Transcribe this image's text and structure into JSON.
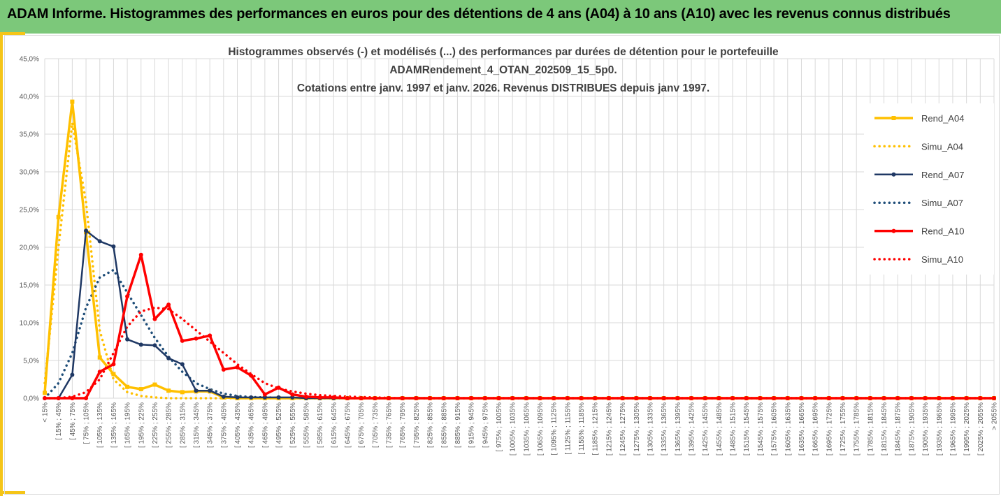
{
  "header": {
    "title": "ADAM Informe. Histogrammes des performances en euros pour des détentions de 4 ans (A04) à 10 ans (A10) avec les revenus connus distribués"
  },
  "colors": {
    "header_bg": "#7cc87a",
    "accent": "#f5c518",
    "A04": "#ffc000",
    "A07": "#1f3864",
    "A10": "#ff0000",
    "grid": "#d9d9d9"
  },
  "chart_data": {
    "type": "line",
    "title_lines": [
      "Histogrammes observés (-) et modélisés (...) des performances par durées de détention pour le portefeuille",
      "ADAMRendement_4_OTAN_202509_15_5p0.",
      "Cotations entre janv. 1997 et janv. 2026. Revenus DISTRIBUES depuis janv 1997."
    ],
    "ylim": [
      0,
      45
    ],
    "yticks": [
      "0,0%",
      "5,0%",
      "10,0%",
      "15,0%",
      "20,0%",
      "25,0%",
      "30,0%",
      "35,0%",
      "40,0%",
      "45,0%"
    ],
    "grid": true,
    "legend_position": "right",
    "categories": [
      "< 15%",
      "[ 15% ; 45%",
      "[ 45% ; 75%",
      "[ 75% ; 105%",
      "[ 105% ; 135%",
      "[ 135% ; 165%",
      "[ 165% ; 195%",
      "[ 195% ; 225%",
      "[ 225% ; 255%",
      "[ 255% ; 285%",
      "[ 285% ; 315%",
      "[ 315% ; 345%",
      "[ 345% ; 375%",
      "[ 375% ; 405%",
      "[ 405% ; 435%",
      "[ 435% ; 465%",
      "[ 465% ; 495%",
      "[ 495% ; 525%",
      "[ 525% ; 555%",
      "[ 555% ; 585%",
      "[ 585% ; 615%",
      "[ 615% ; 645%",
      "[ 645% ; 675%",
      "[ 675% ; 705%",
      "[ 705% ; 735%",
      "[ 735% ; 765%",
      "[ 765% ; 795%",
      "[ 795% ; 825%",
      "[ 825% ; 855%",
      "[ 855% ; 885%",
      "[ 885% ; 915%",
      "[ 915% ; 945%",
      "[ 945% ; 975%",
      "[ 975% ; 1005%",
      "[ 1005% ; 1035%",
      "[ 1035% ; 1065%",
      "[ 1065% ; 1095%",
      "[ 1095% ; 1125%",
      "[ 1125% ; 1155%",
      "[ 1155% ; 1185%",
      "[ 1185% ; 1215%",
      "[ 1215% ; 1245%",
      "[ 1245% ; 1275%",
      "[ 1275% ; 1305%",
      "[ 1305% ; 1335%",
      "[ 1335% ; 1365%",
      "[ 1365% ; 1395%",
      "[ 1395% ; 1425%",
      "[ 1425% ; 1455%",
      "[ 1455% ; 1485%",
      "[ 1485% ; 1515%",
      "[ 1515% ; 1545%",
      "[ 1545% ; 1575%",
      "[ 1575% ; 1605%",
      "[ 1605% ; 1635%",
      "[ 1635% ; 1665%",
      "[ 1665% ; 1695%",
      "[ 1695% ; 1725%",
      "[ 1725% ; 1755%",
      "[ 1755% ; 1785%",
      "[ 1785% ; 1815%",
      "[ 1815% ; 1845%",
      "[ 1845% ; 1875%",
      "[ 1875% ; 1905%",
      "[ 1905% ; 1935%",
      "[ 1935% ; 1965%",
      "[ 1965% ; 1995%",
      "[ 1995% ; 2025%",
      "[ 2025% ; 2055%",
      "> 2055%"
    ],
    "series": [
      {
        "name": "Rend_A04",
        "style": "solid",
        "color": "#ffc000",
        "values": [
          0.7,
          24.0,
          39.3,
          22.0,
          5.4,
          3.2,
          1.5,
          1.2,
          1.8,
          1.0,
          0.8,
          0.9,
          0.9,
          0.1,
          0,
          0,
          0,
          0,
          0,
          0,
          0,
          0,
          0,
          0,
          0,
          0,
          0,
          0,
          0,
          0,
          0,
          0,
          0,
          0,
          0,
          0,
          0,
          0,
          0,
          0,
          0,
          0,
          0,
          0,
          0,
          0,
          0,
          0,
          0,
          0,
          0,
          0,
          0,
          0,
          0,
          0,
          0,
          0,
          0,
          0,
          0,
          0,
          0,
          0,
          0,
          0,
          0,
          0,
          0,
          0
        ]
      },
      {
        "name": "Simu_A04",
        "style": "dotted",
        "color": "#ffc000",
        "values": [
          2.0,
          20.0,
          36.5,
          26.0,
          9.0,
          2.5,
          0.8,
          0.3,
          0.1,
          0,
          0,
          0,
          0,
          0,
          0,
          0,
          0,
          0,
          0,
          0,
          0,
          0,
          0,
          0,
          0,
          0,
          0,
          0,
          0,
          0,
          0,
          0,
          0,
          0,
          0,
          0,
          0,
          0,
          0,
          0,
          0,
          0,
          0,
          0,
          0,
          0,
          0,
          0,
          0,
          0,
          0,
          0,
          0,
          0,
          0,
          0,
          0,
          0,
          0,
          0,
          0,
          0,
          0,
          0,
          0,
          0,
          0,
          0,
          0,
          0
        ]
      },
      {
        "name": "Rend_A07",
        "style": "solid",
        "color": "#1f3864",
        "values": [
          0,
          0,
          3.1,
          22.2,
          20.8,
          20.1,
          7.8,
          7.1,
          7.0,
          5.3,
          4.5,
          1.0,
          1.0,
          0.2,
          0.1,
          0.1,
          0.1,
          0.1,
          0.1,
          0,
          0,
          0,
          0,
          0,
          0,
          0,
          0,
          0,
          0,
          0,
          0,
          0,
          0,
          0,
          0,
          0,
          0,
          0,
          0,
          0,
          0,
          0,
          0,
          0,
          0,
          0,
          0,
          0,
          0,
          0,
          0,
          0,
          0,
          0,
          0,
          0,
          0,
          0,
          0,
          0,
          0,
          0,
          0,
          0,
          0,
          0,
          0,
          0,
          0,
          0
        ]
      },
      {
        "name": "Simu_A07",
        "style": "dotted",
        "color": "#1f4e79",
        "values": [
          0,
          2.0,
          6.0,
          12.0,
          16.0,
          17.0,
          14.0,
          11.0,
          8.0,
          5.5,
          3.5,
          2.0,
          1.2,
          0.6,
          0.3,
          0.15,
          0.1,
          0.05,
          0,
          0,
          0,
          0,
          0,
          0,
          0,
          0,
          0,
          0,
          0,
          0,
          0,
          0,
          0,
          0,
          0,
          0,
          0,
          0,
          0,
          0,
          0,
          0,
          0,
          0,
          0,
          0,
          0,
          0,
          0,
          0,
          0,
          0,
          0,
          0,
          0,
          0,
          0,
          0,
          0,
          0,
          0,
          0,
          0,
          0,
          0,
          0,
          0,
          0,
          0,
          0
        ]
      },
      {
        "name": "Rend_A10",
        "style": "solid",
        "color": "#ff0000",
        "values": [
          0,
          0,
          0,
          0,
          3.5,
          4.5,
          13.5,
          19.0,
          10.5,
          12.4,
          7.6,
          7.9,
          8.3,
          3.8,
          4.1,
          3.0,
          0.5,
          1.4,
          0.5,
          0.2,
          0.1,
          0.1,
          0,
          0,
          0,
          0,
          0,
          0,
          0,
          0,
          0,
          0,
          0,
          0,
          0,
          0,
          0,
          0,
          0,
          0,
          0,
          0,
          0,
          0,
          0,
          0,
          0,
          0,
          0,
          0,
          0,
          0,
          0,
          0,
          0,
          0,
          0,
          0,
          0,
          0,
          0,
          0,
          0,
          0,
          0,
          0,
          0,
          0,
          0,
          0
        ]
      },
      {
        "name": "Simu_A10",
        "style": "dotted",
        "color": "#ff0000",
        "values": [
          0,
          0,
          0.2,
          0.8,
          2.5,
          6.0,
          9.5,
          11.5,
          12.0,
          11.8,
          10.5,
          9.0,
          7.5,
          6.0,
          4.5,
          3.2,
          2.0,
          1.3,
          0.9,
          0.6,
          0.4,
          0.3,
          0.2,
          0.15,
          0.1,
          0.05,
          0,
          0,
          0,
          0,
          0,
          0,
          0,
          0,
          0,
          0,
          0,
          0,
          0,
          0,
          0,
          0,
          0,
          0,
          0,
          0,
          0,
          0,
          0,
          0,
          0,
          0,
          0,
          0,
          0,
          0,
          0,
          0,
          0,
          0,
          0,
          0,
          0,
          0,
          0,
          0,
          0,
          0,
          0,
          0
        ]
      }
    ]
  }
}
